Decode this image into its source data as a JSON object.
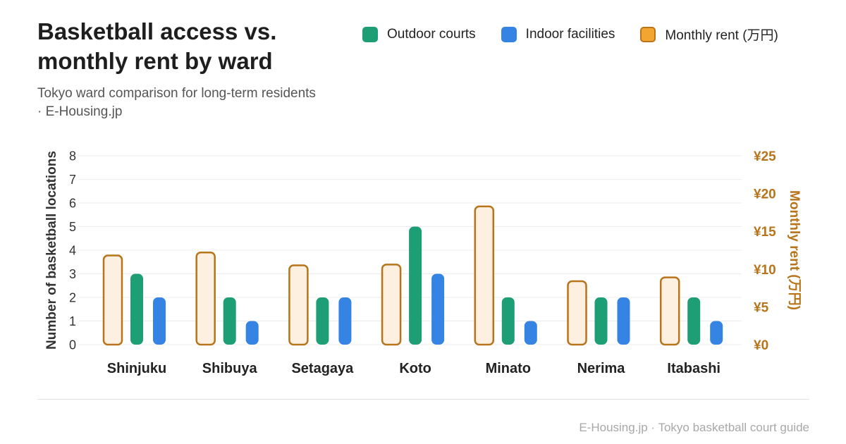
{
  "title": "Basketball access vs. monthly rent by ward",
  "subtitle": "Tokyo ward comparison for long-term residents · E-Housing.jp",
  "footer": "E-Housing.jp · Tokyo basketball court guide",
  "legend": {
    "outdoor": "Outdoor courts",
    "indoor": "Indoor facilities",
    "rent": "Monthly rent (万円)"
  },
  "colors": {
    "outdoor": "#1e9e74",
    "indoor": "#3584e4",
    "rent_fill": "#fdf0e1",
    "rent_stroke": "#b8741a",
    "rent_axis": "#b8741a"
  },
  "chart_data": {
    "type": "bar",
    "categories": [
      "Shinjuku",
      "Shibuya",
      "Setagaya",
      "Koto",
      "Minato",
      "Nerima",
      "Itabashi"
    ],
    "series": [
      {
        "name": "Monthly rent (万円)",
        "axis": "right",
        "values": [
          11.8,
          12.2,
          10.5,
          10.6,
          18.3,
          8.4,
          8.9
        ]
      },
      {
        "name": "Outdoor courts",
        "axis": "left",
        "values": [
          3,
          2,
          2,
          5,
          2,
          2,
          2
        ]
      },
      {
        "name": "Indoor facilities",
        "axis": "left",
        "values": [
          2,
          1,
          2,
          3,
          1,
          2,
          1
        ]
      }
    ],
    "ylabel": "Number of basketball locations",
    "ylabel_right": "Monthly rent (万円)",
    "ylim": [
      0,
      8
    ],
    "yticks": [
      "0",
      "1",
      "2",
      "3",
      "4",
      "5",
      "6",
      "7",
      "8"
    ],
    "ylim_right": [
      0,
      25
    ],
    "yticks_right": [
      "¥0",
      "¥5",
      "¥10",
      "¥15",
      "¥20",
      "¥25"
    ],
    "grid": true
  }
}
